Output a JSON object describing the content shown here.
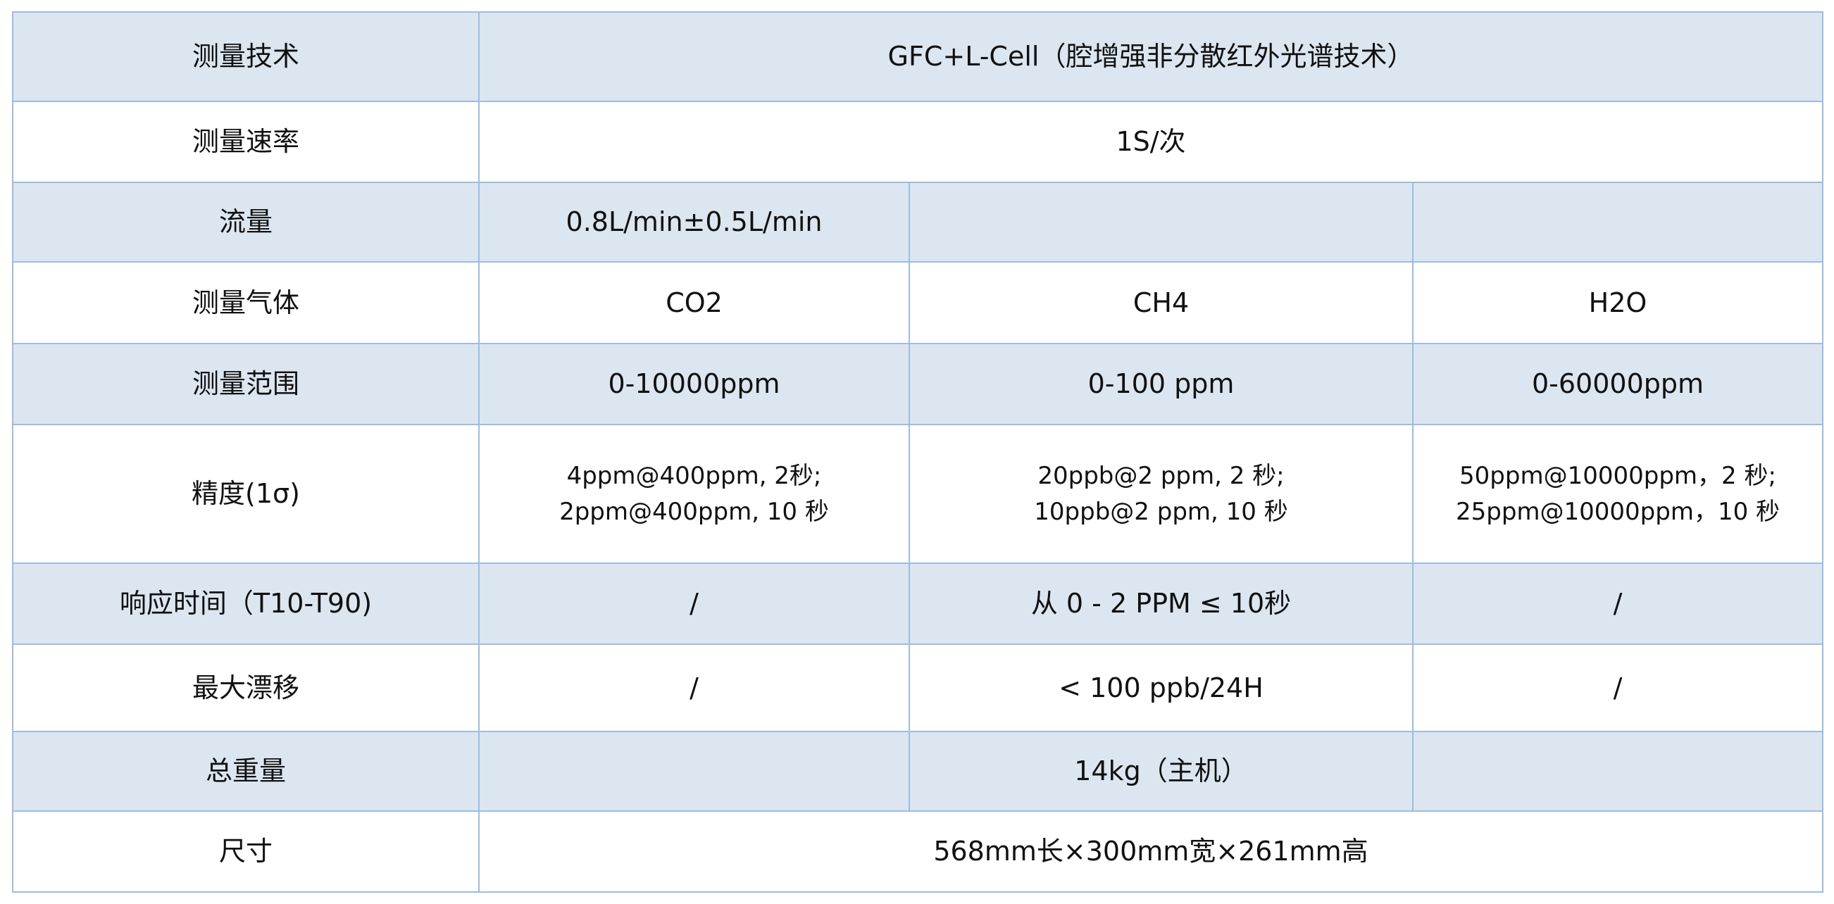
{
  "colors": {
    "row_alt": "#dce6f1",
    "border": "#9dbce0"
  },
  "rows": [
    {
      "label": "测量技术",
      "value": "GFC+L-Cell（腔增强非分散红外光谱技术）"
    },
    {
      "label": "测量速率",
      "value": "1S/次"
    },
    {
      "label": "流量",
      "cells": [
        "0.8L/min±0.5L/min",
        "",
        ""
      ]
    },
    {
      "label": "测量气体",
      "cells": [
        "CO2",
        "CH4",
        "H2O"
      ]
    },
    {
      "label": "测量范围",
      "cells": [
        "0-10000ppm",
        "0-100 ppm",
        "0-60000ppm"
      ]
    },
    {
      "label": "精度(1σ)",
      "cells": [
        [
          "4ppm@400ppm, 2秒;",
          "2ppm@400ppm, 10 秒"
        ],
        [
          "20ppb@2 ppm, 2 秒;",
          "10ppb@2 ppm, 10 秒"
        ],
        [
          "50ppm@10000ppm，2 秒;",
          "25ppm@10000ppm，10 秒"
        ]
      ]
    },
    {
      "label": "响应时间（T10-T90)",
      "cells": [
        "/",
        "从 0 - 2 PPM ≤ 10秒",
        "/"
      ]
    },
    {
      "label": "最大漂移",
      "cells": [
        "/",
        "< 100 ppb/24H",
        "/"
      ]
    },
    {
      "label": "总重量",
      "cells": [
        "",
        "14kg（主机）",
        ""
      ]
    },
    {
      "label": "尺寸",
      "value": "568mm长×300mm宽×261mm高"
    }
  ]
}
